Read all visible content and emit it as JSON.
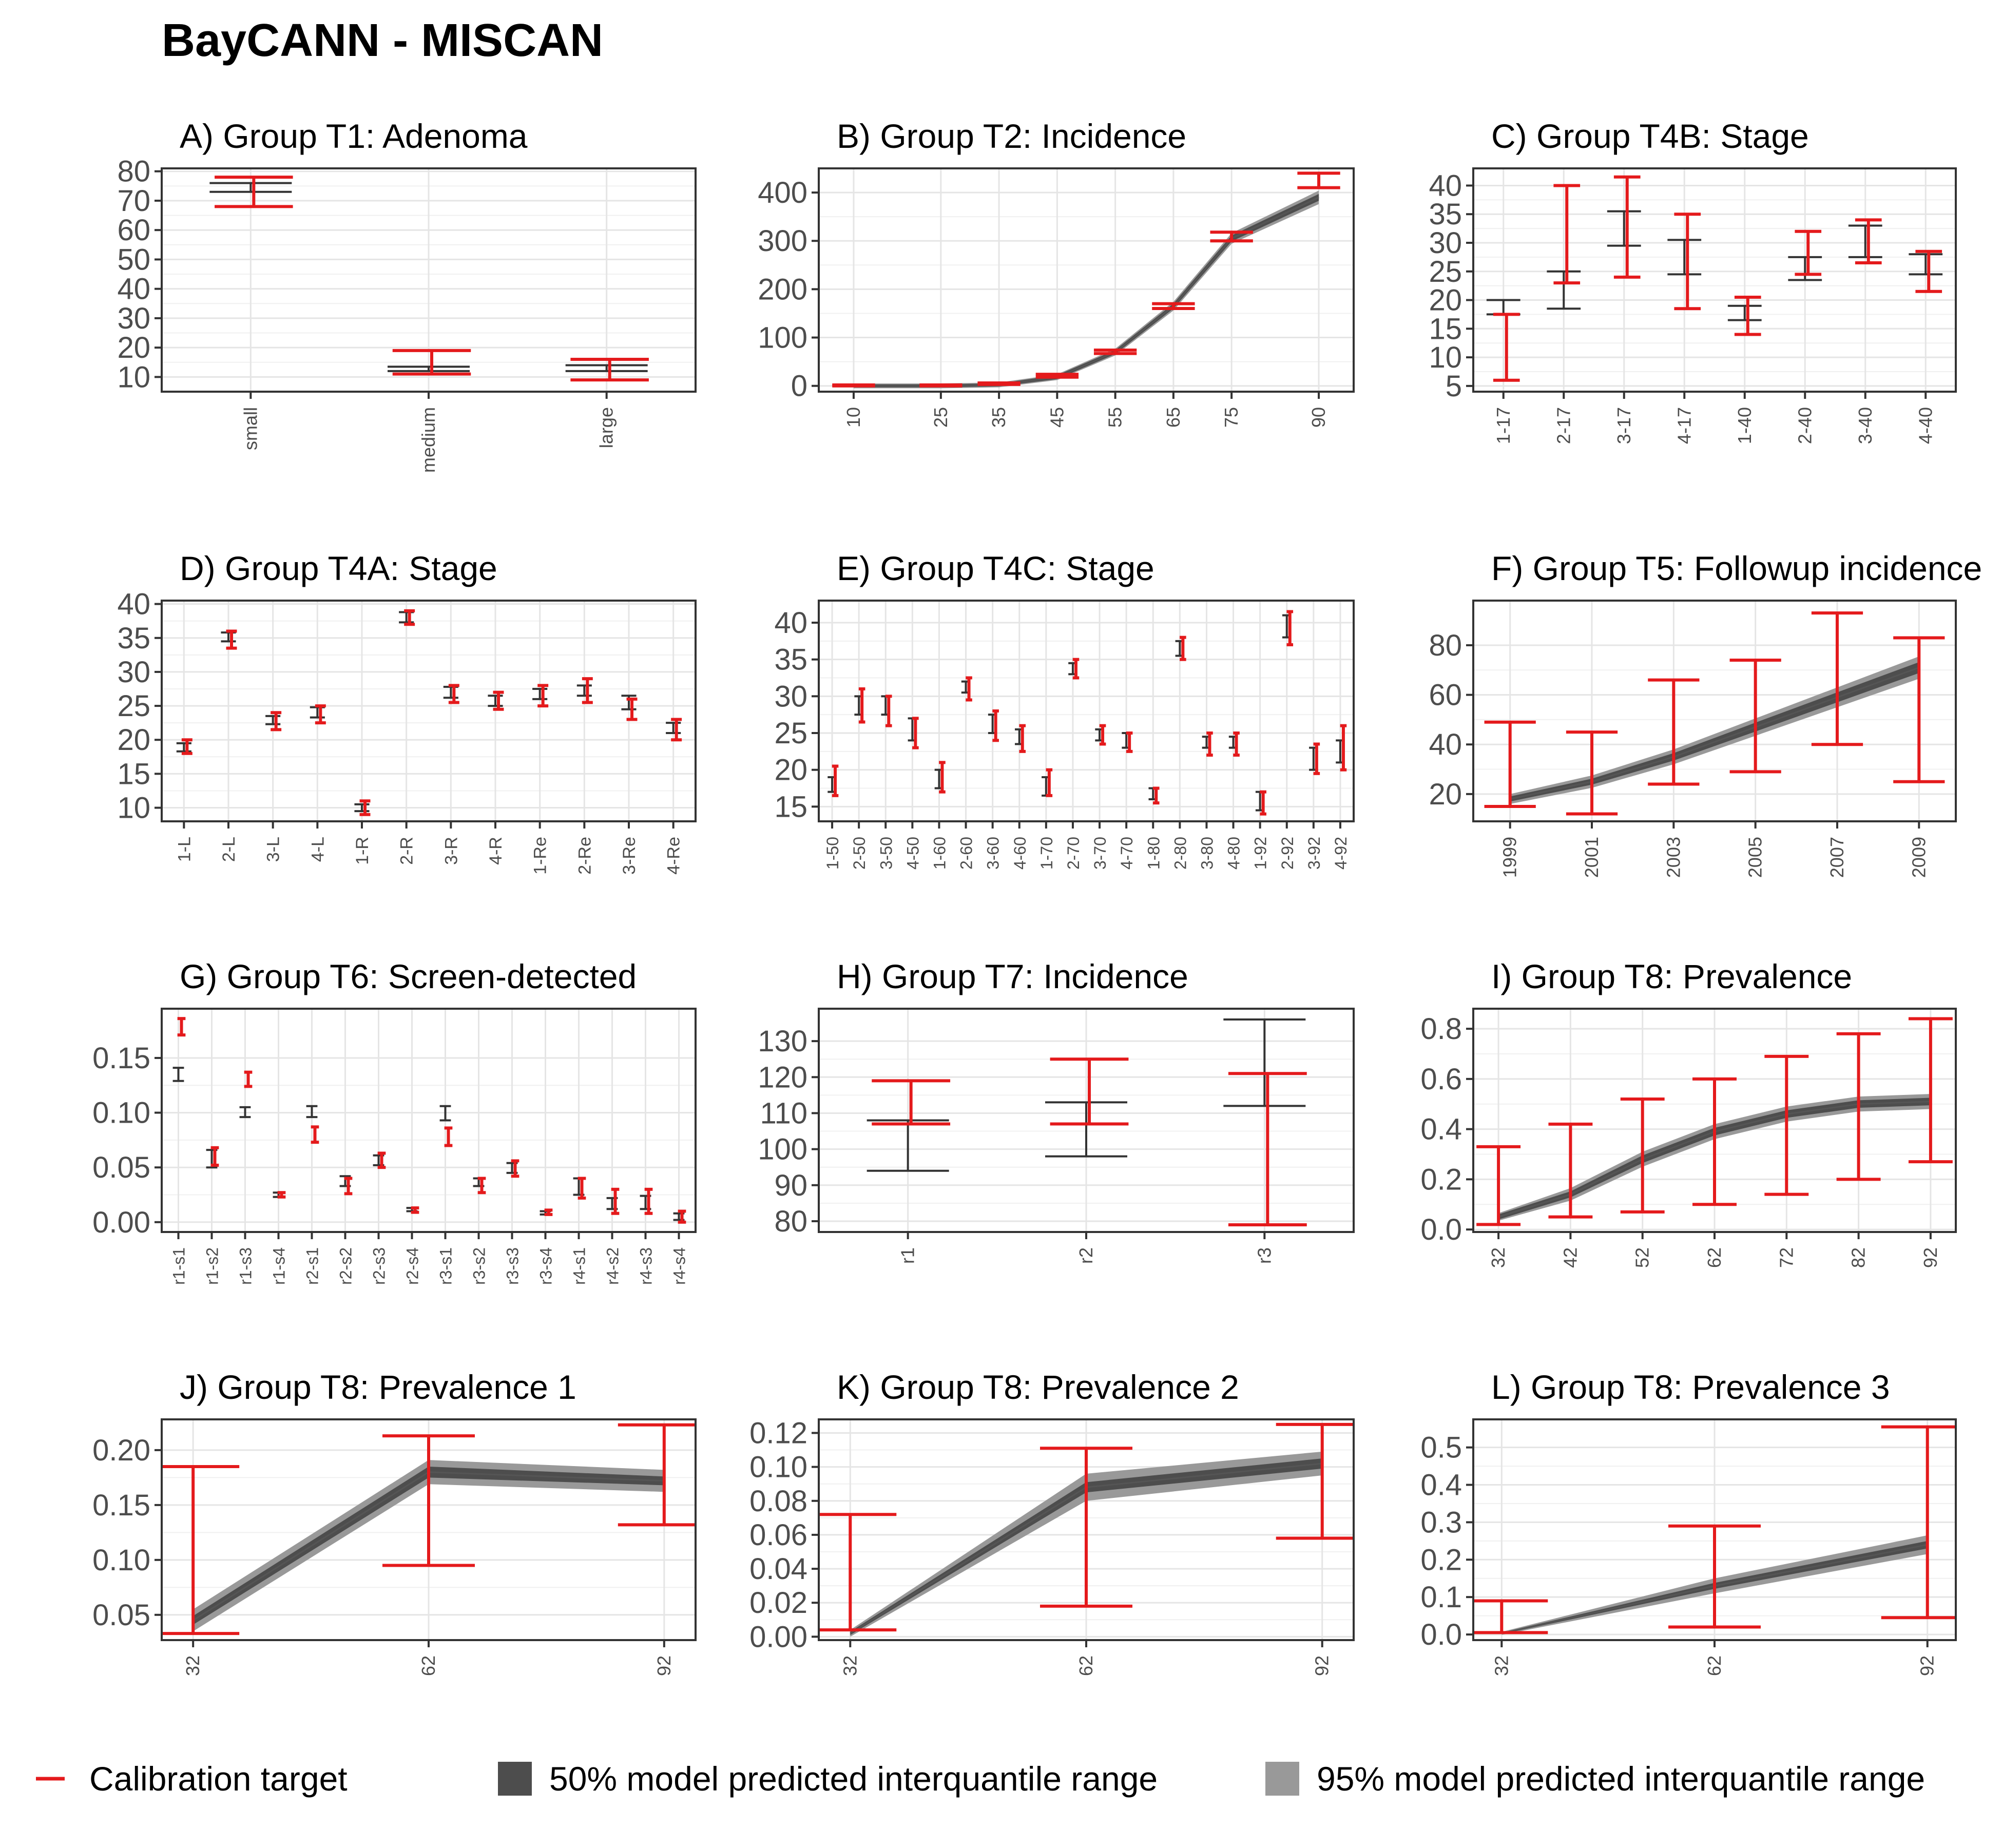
{
  "title": "BayCANN - MISCAN",
  "colors": {
    "target": "#e41a1c",
    "model": "#333333",
    "band50": "#4d4d4d",
    "band95": "#999999",
    "grid": "#e5e5e5"
  },
  "legend": [
    {
      "label": "Calibration target",
      "icon": "red-line-icon"
    },
    {
      "label": "50% model predicted interquantile range",
      "icon": "dark-grey-square-icon"
    },
    {
      "label": "95% model predicted interquantile range",
      "icon": "light-grey-square-icon"
    }
  ],
  "chart_data": [
    {
      "type": "errorbar",
      "title": "A) Group T1: Adenoma",
      "ylim": [
        5,
        81
      ],
      "yticks": [
        10,
        20,
        30,
        40,
        50,
        60,
        70,
        80
      ],
      "ytick_labels": [
        "10",
        "20",
        "30",
        "40",
        "50",
        "60",
        "70",
        "80"
      ],
      "categories": [
        "small",
        "medium",
        "large"
      ],
      "targets": [
        [
          68,
          78
        ],
        [
          11,
          19
        ],
        [
          9,
          16
        ]
      ],
      "model": [
        [
          73,
          76
        ],
        [
          12,
          13.5
        ],
        [
          12,
          14
        ]
      ]
    },
    {
      "type": "line",
      "title": "B) Group T2: Incidence",
      "ylim": [
        -12,
        450
      ],
      "yticks": [
        0,
        100,
        200,
        300,
        400
      ],
      "ytick_labels": [
        "0",
        "100",
        "200",
        "300",
        "400"
      ],
      "categories": [
        "10",
        "25",
        "35",
        "45",
        "55",
        "65",
        "75",
        "90"
      ],
      "x": [
        10,
        25,
        35,
        45,
        55,
        65,
        75,
        90
      ],
      "xlim": [
        4,
        96
      ],
      "targets": [
        [
          0,
          2
        ],
        [
          0,
          2
        ],
        [
          3,
          6
        ],
        [
          18,
          24
        ],
        [
          67,
          74
        ],
        [
          160,
          170
        ],
        [
          300,
          318
        ],
        [
          410,
          440
        ]
      ],
      "median": [
        0,
        0,
        2,
        18,
        70,
        165,
        305,
        390
      ],
      "band50": [
        3,
        3,
        3,
        4,
        4,
        5,
        6,
        7
      ],
      "band95": [
        5,
        5,
        5,
        6,
        7,
        9,
        11,
        14
      ]
    },
    {
      "type": "errorbar",
      "title": "C) Group T4B: Stage",
      "ylim": [
        4,
        43
      ],
      "yticks": [
        5,
        10,
        15,
        20,
        25,
        30,
        35,
        40
      ],
      "ytick_labels": [
        "5",
        "10",
        "15",
        "20",
        "25",
        "30",
        "35",
        "40"
      ],
      "categories": [
        "1-17",
        "2-17",
        "3-17",
        "4-17",
        "1-40",
        "2-40",
        "3-40",
        "4-40"
      ],
      "targets": [
        [
          6,
          17.5
        ],
        [
          23,
          40
        ],
        [
          24,
          41.5
        ],
        [
          18.5,
          35
        ],
        [
          14,
          20.5
        ],
        [
          24.5,
          32
        ],
        [
          26.5,
          34
        ],
        [
          21.5,
          28.5
        ]
      ],
      "model": [
        [
          17.5,
          20
        ],
        [
          18.5,
          25
        ],
        [
          29.5,
          35.5
        ],
        [
          24.5,
          30.5
        ],
        [
          16.5,
          19
        ],
        [
          23.5,
          27.5
        ],
        [
          27.5,
          33
        ],
        [
          24.5,
          28
        ]
      ]
    },
    {
      "type": "errorbar",
      "title": "D) Group T4A: Stage",
      "ylim": [
        8,
        40.5
      ],
      "yticks": [
        10,
        15,
        20,
        25,
        30,
        35,
        40
      ],
      "ytick_labels": [
        "10",
        "15",
        "20",
        "25",
        "30",
        "35",
        "40"
      ],
      "categories": [
        "1-L",
        "2-L",
        "3-L",
        "4-L",
        "1-R",
        "2-R",
        "3-R",
        "4-R",
        "1-Re",
        "2-Re",
        "3-Re",
        "4-Re"
      ],
      "targets": [
        [
          18,
          20
        ],
        [
          33.5,
          36
        ],
        [
          21.5,
          24
        ],
        [
          22.5,
          25
        ],
        [
          9,
          11
        ],
        [
          37,
          39
        ],
        [
          25.5,
          28
        ],
        [
          24.5,
          27
        ],
        [
          25,
          28
        ],
        [
          25.5,
          29
        ],
        [
          23,
          26
        ],
        [
          20,
          23
        ]
      ],
      "model": [
        [
          18.3,
          19.5
        ],
        [
          34.5,
          35.8
        ],
        [
          22.3,
          23.5
        ],
        [
          23.3,
          24.8
        ],
        [
          9.5,
          10.5
        ],
        [
          37.3,
          38.8
        ],
        [
          26.2,
          27.8
        ],
        [
          25,
          26.5
        ],
        [
          26,
          27.5
        ],
        [
          26.5,
          28
        ],
        [
          24.5,
          26.5
        ],
        [
          21,
          22.5
        ]
      ]
    },
    {
      "type": "errorbar",
      "title": "E) Group T4C: Stage",
      "ylim": [
        13,
        43
      ],
      "yticks": [
        15,
        20,
        25,
        30,
        35,
        40
      ],
      "ytick_labels": [
        "15",
        "20",
        "25",
        "30",
        "35",
        "40"
      ],
      "categories": [
        "1-50",
        "2-50",
        "3-50",
        "4-50",
        "1-60",
        "2-60",
        "3-60",
        "4-60",
        "1-70",
        "2-70",
        "3-70",
        "4-70",
        "1-80",
        "2-80",
        "3-80",
        "4-80",
        "1-92",
        "2-92",
        "3-92",
        "4-92"
      ],
      "targets": [
        [
          16.5,
          20.5
        ],
        [
          26.5,
          31
        ],
        [
          26,
          30
        ],
        [
          23,
          27
        ],
        [
          17,
          21
        ],
        [
          29.5,
          32.5
        ],
        [
          24,
          28
        ],
        [
          22.5,
          26
        ],
        [
          16.5,
          20
        ],
        [
          32.5,
          35
        ],
        [
          23.5,
          26
        ],
        [
          22.5,
          25
        ],
        [
          15.5,
          17.5
        ],
        [
          35,
          38
        ],
        [
          22,
          25
        ],
        [
          22,
          25
        ],
        [
          14,
          17
        ],
        [
          37,
          41.5
        ],
        [
          19.5,
          23.5
        ],
        [
          20,
          26
        ]
      ],
      "model": [
        [
          17,
          19
        ],
        [
          27.5,
          30
        ],
        [
          27.5,
          30
        ],
        [
          24,
          27
        ],
        [
          17.5,
          20
        ],
        [
          30.5,
          32
        ],
        [
          25,
          27.5
        ],
        [
          23.5,
          25.5
        ],
        [
          16.5,
          19
        ],
        [
          33,
          34.5
        ],
        [
          24,
          25.5
        ],
        [
          23,
          25
        ],
        [
          16,
          17.5
        ],
        [
          35.5,
          37.5
        ],
        [
          23,
          24.5
        ],
        [
          23,
          24.5
        ],
        [
          14.5,
          17
        ],
        [
          38,
          41
        ],
        [
          20,
          23
        ],
        [
          21,
          24
        ]
      ]
    },
    {
      "type": "line",
      "title": "F) Group T5: Followup incidence",
      "ylim": [
        9,
        98
      ],
      "yticks": [
        20,
        40,
        60,
        80
      ],
      "ytick_labels": [
        "20",
        "40",
        "60",
        "80"
      ],
      "categories": [
        "1999",
        "2001",
        "2003",
        "2005",
        "2007",
        "2009"
      ],
      "x": [
        1999,
        2001,
        2003,
        2005,
        2007,
        2009
      ],
      "xlim": [
        1998.1,
        2009.9
      ],
      "targets": [
        [
          15,
          49
        ],
        [
          12,
          45
        ],
        [
          24,
          66
        ],
        [
          29,
          74
        ],
        [
          40,
          93
        ],
        [
          25,
          83
        ]
      ],
      "median": [
        18,
        25,
        35,
        47,
        59,
        71
      ],
      "band50": [
        1,
        1.2,
        1.5,
        1.8,
        2,
        2.2
      ],
      "band95": [
        2,
        2.5,
        3,
        3.5,
        4,
        4.5
      ]
    },
    {
      "type": "errorbar",
      "title": "G) Group T6: Screen-detected",
      "ylim": [
        -0.009,
        0.195
      ],
      "yticks": [
        0,
        0.05,
        0.1,
        0.15
      ],
      "ytick_labels": [
        "0.00",
        "0.05",
        "0.10",
        "0.15"
      ],
      "categories": [
        "r1-s1",
        "r1-s2",
        "r1-s3",
        "r1-s4",
        "r2-s1",
        "r2-s2",
        "r2-s3",
        "r2-s4",
        "r3-s1",
        "r3-s2",
        "r3-s3",
        "r3-s4",
        "r4-s1",
        "r4-s2",
        "r4-s3",
        "r4-s4"
      ],
      "targets": [
        [
          0.171,
          0.186
        ],
        [
          0.052,
          0.068
        ],
        [
          0.124,
          0.137
        ],
        [
          0.023,
          0.027
        ],
        [
          0.073,
          0.087
        ],
        [
          0.026,
          0.04
        ],
        [
          0.05,
          0.063
        ],
        [
          0.009,
          0.013
        ],
        [
          0.07,
          0.086
        ],
        [
          0.027,
          0.04
        ],
        [
          0.042,
          0.056
        ],
        [
          0.007,
          0.011
        ],
        [
          0.022,
          0.04
        ],
        [
          0.008,
          0.03
        ],
        [
          0.008,
          0.03
        ],
        [
          0.0,
          0.01
        ]
      ],
      "model": [
        [
          0.129,
          0.141
        ],
        [
          0.05,
          0.066
        ],
        [
          0.096,
          0.105
        ],
        [
          0.023,
          0.027
        ],
        [
          0.096,
          0.106
        ],
        [
          0.033,
          0.042
        ],
        [
          0.052,
          0.061
        ],
        [
          0.01,
          0.013
        ],
        [
          0.093,
          0.106
        ],
        [
          0.033,
          0.04
        ],
        [
          0.045,
          0.054
        ],
        [
          0.007,
          0.01
        ],
        [
          0.025,
          0.04
        ],
        [
          0.012,
          0.022
        ],
        [
          0.012,
          0.024
        ],
        [
          0.002,
          0.008
        ]
      ]
    },
    {
      "type": "errorbar",
      "title": "H) Group T7: Incidence",
      "ylim": [
        77,
        139
      ],
      "yticks": [
        80,
        90,
        100,
        110,
        120,
        130
      ],
      "ytick_labels": [
        "80",
        "90",
        "100",
        "110",
        "120",
        "130"
      ],
      "categories": [
        "r1",
        "r2",
        "r3"
      ],
      "targets": [
        [
          107,
          119
        ],
        [
          107,
          125
        ],
        [
          79,
          121
        ]
      ],
      "model": [
        [
          94,
          108
        ],
        [
          98,
          113
        ],
        [
          112,
          136
        ]
      ]
    },
    {
      "type": "line",
      "title": "I) Group T8: Prevalence",
      "ylim": [
        -0.01,
        0.88
      ],
      "yticks": [
        0,
        0.2,
        0.4,
        0.6,
        0.8
      ],
      "ytick_labels": [
        "0.0",
        "0.2",
        "0.4",
        "0.6",
        "0.8"
      ],
      "categories": [
        "32",
        "42",
        "52",
        "62",
        "72",
        "82",
        "92"
      ],
      "x": [
        32,
        42,
        52,
        62,
        72,
        82,
        92
      ],
      "xlim": [
        28.5,
        95.5
      ],
      "targets": [
        [
          0.02,
          0.33
        ],
        [
          0.05,
          0.42
        ],
        [
          0.07,
          0.52
        ],
        [
          0.1,
          0.6
        ],
        [
          0.14,
          0.69
        ],
        [
          0.2,
          0.78
        ],
        [
          0.27,
          0.84
        ]
      ],
      "median": [
        0.05,
        0.14,
        0.28,
        0.39,
        0.46,
        0.5,
        0.51
      ],
      "band50": [
        0.01,
        0.012,
        0.015,
        0.015,
        0.015,
        0.015,
        0.015
      ],
      "band95": [
        0.015,
        0.025,
        0.03,
        0.03,
        0.03,
        0.03,
        0.03
      ]
    },
    {
      "type": "line",
      "title": "J) Group T8: Prevalence 1",
      "ylim": [
        0.027,
        0.228
      ],
      "yticks": [
        0.05,
        0.1,
        0.15,
        0.2
      ],
      "ytick_labels": [
        "0.05",
        "0.10",
        "0.15",
        "0.20"
      ],
      "categories": [
        "32",
        "62",
        "92"
      ],
      "x": [
        32,
        62,
        92
      ],
      "xlim": [
        28,
        96
      ],
      "targets": [
        [
          0.033,
          0.185
        ],
        [
          0.095,
          0.213
        ],
        [
          0.132,
          0.223
        ]
      ],
      "median": [
        0.045,
        0.18,
        0.172
      ],
      "band50": [
        0.004,
        0.005,
        0.004
      ],
      "band95": [
        0.01,
        0.011,
        0.01
      ]
    },
    {
      "type": "line",
      "title": "K) Group T8: Prevalence 2",
      "ylim": [
        -0.002,
        0.128
      ],
      "yticks": [
        0,
        0.02,
        0.04,
        0.06,
        0.08,
        0.1,
        0.12
      ],
      "ytick_labels": [
        "0.00",
        "0.02",
        "0.04",
        "0.06",
        "0.08",
        "0.10",
        "0.12"
      ],
      "categories": [
        "32",
        "62",
        "92"
      ],
      "x": [
        32,
        62,
        92
      ],
      "xlim": [
        28,
        96
      ],
      "targets": [
        [
          0.004,
          0.072
        ],
        [
          0.018,
          0.111
        ],
        [
          0.058,
          0.125
        ]
      ],
      "median": [
        0.002,
        0.088,
        0.102
      ],
      "band50": [
        0.001,
        0.003,
        0.003
      ],
      "band95": [
        0.002,
        0.008,
        0.007
      ]
    },
    {
      "type": "line",
      "title": "L) Group T8: Prevalence 3",
      "ylim": [
        -0.015,
        0.575
      ],
      "yticks": [
        0,
        0.1,
        0.2,
        0.3,
        0.4,
        0.5
      ],
      "ytick_labels": [
        "0.0",
        "0.1",
        "0.2",
        "0.3",
        "0.4",
        "0.5"
      ],
      "categories": [
        "32",
        "62",
        "92"
      ],
      "x": [
        32,
        62,
        92
      ],
      "xlim": [
        28,
        96
      ],
      "targets": [
        [
          0.005,
          0.09
        ],
        [
          0.02,
          0.29
        ],
        [
          0.045,
          0.555
        ]
      ],
      "median": [
        0.003,
        0.13,
        0.24
      ],
      "band50": [
        0.002,
        0.008,
        0.01
      ],
      "band95": [
        0.004,
        0.02,
        0.025
      ]
    }
  ]
}
